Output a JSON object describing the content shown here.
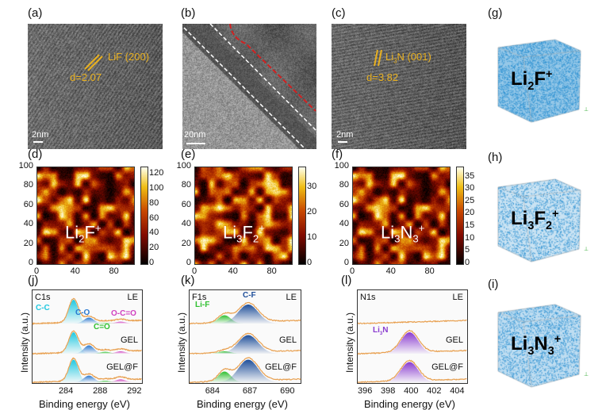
{
  "panel_labels": {
    "a": "(a)",
    "b": "(b)",
    "c": "(c)",
    "d": "(d)",
    "e": "(e)",
    "f": "(f)",
    "g": "(g)",
    "h": "(h)",
    "i": "(i)",
    "j": "(j)",
    "k": "(k)",
    "l": "(l)"
  },
  "tem": {
    "a": {
      "plane": "LiF (200)",
      "d": "d=2.07",
      "scale": "2nm"
    },
    "b": {
      "scale": "20nm"
    },
    "c": {
      "plane_main": "Li",
      "plane_sub": "3",
      "plane_rest": "N (001)",
      "d": "d=3.82",
      "scale": "2nm"
    }
  },
  "colors": {
    "lattice": "#e8b020",
    "spectrum_line": "#e8a050",
    "cube": "#2a8fd0",
    "interface_dash": "#d02020"
  },
  "chart_data": [
    {
      "type": "heatmap",
      "panel": "d",
      "label": {
        "main": "Li",
        "sub": "2",
        "rest": "F",
        "sup": "+"
      },
      "xlim": [
        0,
        100
      ],
      "ylim": [
        0,
        100
      ],
      "xticks": [
        "0",
        "40",
        "80"
      ],
      "yticks": [
        "0",
        "20",
        "40",
        "60",
        "80",
        "100"
      ],
      "colorbar": {
        "range": [
          0,
          130
        ],
        "ticks": [
          "0",
          "20",
          "40",
          "60",
          "80",
          "100",
          "120"
        ]
      },
      "seed": 3
    },
    {
      "type": "heatmap",
      "panel": "e",
      "label": {
        "main": "Li",
        "sub": "3",
        "rest": "F",
        "sub2": "2",
        "sup": "+"
      },
      "xlim": [
        0,
        100
      ],
      "ylim": [
        0,
        100
      ],
      "xticks": [
        "0",
        "40",
        "80"
      ],
      "yticks": [
        "0",
        "20",
        "40",
        "60",
        "80",
        "100"
      ],
      "colorbar": {
        "range": [
          0,
          38
        ],
        "ticks": [
          "0",
          "10",
          "20",
          "30"
        ]
      },
      "seed": 7
    },
    {
      "type": "heatmap",
      "panel": "f",
      "label": {
        "main": "Li",
        "sub": "3",
        "rest": "N",
        "sub2": "3",
        "sup": "+"
      },
      "xlim": [
        0,
        100
      ],
      "ylim": [
        0,
        100
      ],
      "xticks": [
        "0",
        "40",
        "80"
      ],
      "yticks": [
        "0",
        "20",
        "40",
        "60",
        "80",
        "100"
      ],
      "colorbar": {
        "range": [
          0,
          39
        ],
        "ticks": [
          "0",
          "5",
          "10",
          "15",
          "20",
          "25",
          "30",
          "35"
        ]
      },
      "seed": 3
    },
    {
      "type": "line",
      "panel": "j",
      "core": "C1s",
      "xlabel": "Binding energy (eV)",
      "ylabel": "Intensity (a.u.)",
      "xlim": [
        280,
        292.8
      ],
      "xticks": [
        284,
        288,
        292
      ],
      "peaks": [
        {
          "name": "C-C",
          "center": 284.8,
          "width": 0.55,
          "color": "#20c8e0"
        },
        {
          "name": "C-O",
          "center": 286.6,
          "width": 0.6,
          "color": "#2a78d0"
        },
        {
          "name": "C=O",
          "center": 288.5,
          "width": 0.6,
          "color": "#30c030"
        },
        {
          "name": "O-C=O",
          "center": 290.3,
          "width": 0.6,
          "color": "#d040c0"
        }
      ],
      "series": [
        {
          "name": "LE",
          "amplitudes": [
            1.0,
            0.25,
            0.03,
            0.08
          ]
        },
        {
          "name": "GEL",
          "amplitudes": [
            0.9,
            0.35,
            0.08,
            0.1
          ]
        },
        {
          "name": "GEL@F",
          "amplitudes": [
            0.95,
            0.28,
            0.06,
            0.12
          ]
        }
      ]
    },
    {
      "type": "line",
      "panel": "k",
      "core": "F1s",
      "xlabel": "Binding energy (eV)",
      "ylabel": "Intensity (a.u.)",
      "xlim": [
        682.1,
        691
      ],
      "xticks": [
        684,
        687,
        690
      ],
      "peaks": [
        {
          "name": "Li-F",
          "center": 684.9,
          "width": 0.5,
          "color": "#30c030"
        },
        {
          "name": "C-F",
          "center": 686.8,
          "width": 0.8,
          "color": "#1f4f9a"
        }
      ],
      "series": [
        {
          "name": "LE",
          "amplitudes": [
            0.35,
            0.8
          ]
        },
        {
          "name": "GEL",
          "amplitudes": [
            0.1,
            0.78
          ]
        },
        {
          "name": "GEL@F",
          "amplitudes": [
            0.45,
            0.95
          ]
        }
      ]
    },
    {
      "type": "line",
      "panel": "l",
      "core": "N1s",
      "xlabel": "Binding energy (eV)",
      "ylabel": "Intensity (a.u.)",
      "xlim": [
        395.3,
        404.8
      ],
      "xticks": [
        396,
        398,
        400,
        402,
        404
      ],
      "peaks": [
        {
          "name": "Li3N",
          "label_main": "Li",
          "label_sub": "3",
          "label_rest": "N",
          "center": 399.8,
          "width": 0.75,
          "color": "#8a3cd0"
        }
      ],
      "series": [
        {
          "name": "LE",
          "amplitudes": [
            0.0
          ]
        },
        {
          "name": "GEL",
          "amplitudes": [
            0.9
          ]
        },
        {
          "name": "GEL@F",
          "amplitudes": [
            0.85
          ]
        }
      ]
    }
  ],
  "cubes": [
    {
      "panel": "g",
      "main": "Li",
      "sub": "2",
      "rest": "F",
      "sup": "+",
      "density": 0.9
    },
    {
      "panel": "h",
      "main": "Li",
      "sub": "3",
      "rest": "F",
      "sub2": "2",
      "sup": "+",
      "density": 0.45
    },
    {
      "panel": "i",
      "main": "Li",
      "sub": "3",
      "rest": "N",
      "sub2": "3",
      "sup": "+",
      "density": 0.55
    }
  ]
}
